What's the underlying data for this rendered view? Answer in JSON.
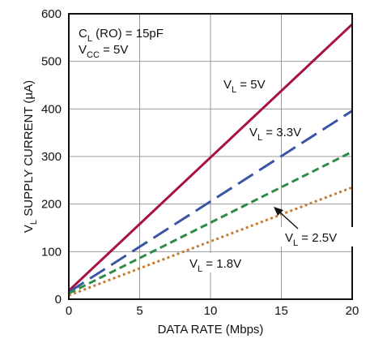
{
  "chart_data": {
    "type": "line",
    "title": "",
    "xlabel": "DATA RATE (Mbps)",
    "ylabel": {
      "main": "V",
      "sub": "L",
      "rest": " SUPPLY CURRENT (µA)"
    },
    "xlim": [
      0,
      20
    ],
    "ylim": [
      0,
      600
    ],
    "xticks": [
      "0",
      "5",
      "10",
      "15",
      "20"
    ],
    "yticks": [
      "0",
      "100",
      "200",
      "300",
      "400",
      "500",
      "600"
    ],
    "grid": true,
    "conditions": [
      {
        "main": "C",
        "sub": "L",
        "rest": " (RO) = 15pF"
      },
      {
        "main": "V",
        "sub": "CC",
        "rest": " = 5V"
      }
    ],
    "series": [
      {
        "label": {
          "main": "V",
          "sub": "L",
          "rest": " = 5V"
        },
        "color": "#a8123e",
        "style": "solid",
        "x": [
          0,
          20
        ],
        "y": [
          18,
          578
        ]
      },
      {
        "label": {
          "main": "V",
          "sub": "L",
          "rest": " = 3.3V"
        },
        "color": "#3a55a4",
        "style": "long-dash",
        "x": [
          0,
          20
        ],
        "y": [
          15,
          396
        ]
      },
      {
        "label": {
          "main": "V",
          "sub": "L",
          "rest": " = 2.5V"
        },
        "color": "#2e8b45",
        "style": "dash",
        "x": [
          0,
          20
        ],
        "y": [
          12,
          310
        ]
      },
      {
        "label": {
          "main": "V",
          "sub": "L",
          "rest": " = 1.8V"
        },
        "color": "#c87a30",
        "style": "dot",
        "x": [
          0,
          20
        ],
        "y": [
          8,
          235
        ]
      }
    ]
  }
}
